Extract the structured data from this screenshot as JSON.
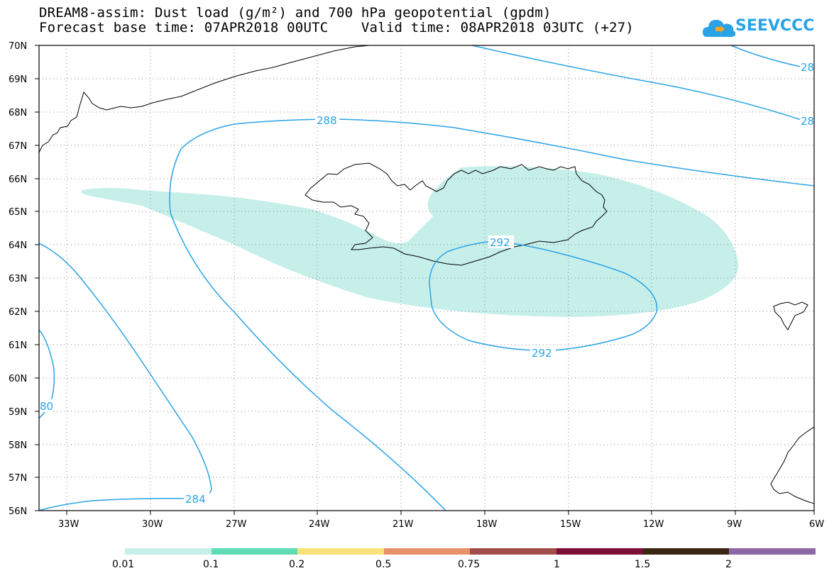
{
  "header": {
    "line1": "DREAM8-assim: Dust load (g/m²) and 700 hPa geopotential (gpdm)",
    "line2": "Forecast base time: 07APR2018 00UTC    Valid time: 08APR2018 03UTC (+27)"
  },
  "logo": {
    "text": "SEEVCCC",
    "color": "#2aa3e6"
  },
  "map": {
    "lat_labels": [
      "70N",
      "69N",
      "68N",
      "67N",
      "66N",
      "65N",
      "64N",
      "63N",
      "62N",
      "61N",
      "60N",
      "59N",
      "58N",
      "57N",
      "56N"
    ],
    "lon_labels": [
      "33W",
      "30W",
      "27W",
      "24W",
      "21W",
      "18W",
      "15W",
      "12W",
      "9W",
      "6W"
    ],
    "dust_color": "#c6efea",
    "contour_color": "#2aa3e6",
    "contour_labels": [
      {
        "id": "c288",
        "text": "288"
      },
      {
        "id": "c292a",
        "text": "292"
      },
      {
        "id": "c292b",
        "text": "292"
      },
      {
        "id": "c284",
        "text": "284"
      },
      {
        "id": "c280",
        "text": "80"
      },
      {
        "id": "c28a",
        "text": "28"
      },
      {
        "id": "c28b",
        "text": "28"
      }
    ]
  },
  "colorbar": {
    "colors": [
      "#c6efea",
      "#5fdcb4",
      "#f7e27a",
      "#e8906a",
      "#a14e4a",
      "#7d0e35",
      "#3a2512",
      "#8e68a6"
    ],
    "labels": [
      "0.01",
      "0.1",
      "0.2",
      "0.5",
      "0.75",
      "1",
      "1.5",
      "2"
    ]
  }
}
